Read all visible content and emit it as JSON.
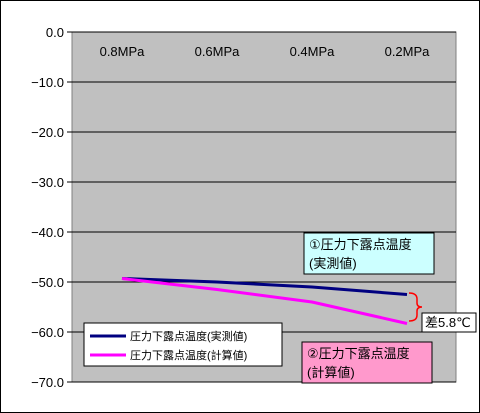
{
  "chart_data": {
    "type": "line",
    "title": "",
    "xlabel": "",
    "ylabel": "",
    "categories": [
      "0.8MPa",
      "0.6MPa",
      "0.4MPa",
      "0.2MPa"
    ],
    "ylim": [
      -70,
      0
    ],
    "yticks": [
      "0.0",
      "−10.0",
      "−20.0",
      "−30.0",
      "−40.0",
      "−50.0",
      "−60.0",
      "−70.0"
    ],
    "grid": true,
    "legend_position": "bottom-left",
    "series": [
      {
        "name": "圧力下露点温度(実測値)",
        "color": "#000080",
        "x": [
          0.8,
          0.6,
          0.4,
          0.2
        ],
        "values": [
          -49.3,
          -50.0,
          -51.0,
          -52.5
        ]
      },
      {
        "name": "圧力下露点温度(計算値)",
        "color": "#ff00ff",
        "x": [
          0.8,
          0.6,
          0.4,
          0.2
        ],
        "values": [
          -49.3,
          -51.5,
          -54.0,
          -58.3
        ]
      }
    ],
    "annotations": {
      "measured_label_lines": [
        "①圧力下露点温度",
        "(実測値)"
      ],
      "calculated_label_lines": [
        "②圧力下露点温度",
        "(計算値)"
      ],
      "difference_label": "差5.8℃"
    },
    "colors": {
      "plot_background": "#c0c0c0",
      "measured_box": "#ccffff",
      "calculated_box": "#ff99cc",
      "brace": "#ff0000"
    }
  }
}
